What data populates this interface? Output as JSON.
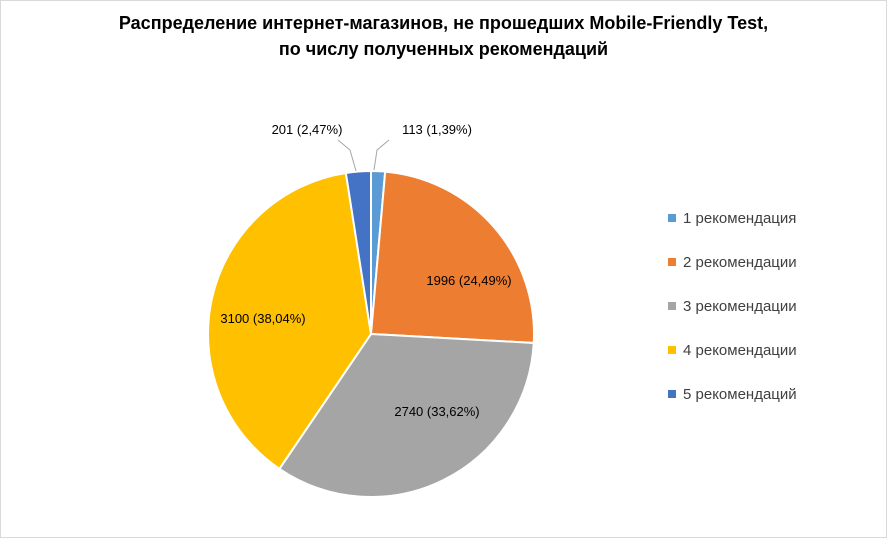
{
  "chart_data": {
    "type": "pie",
    "title_lines": [
      "Распределение интернет-магазинов, не прошедших Mobile-Friendly Test,",
      "по числу полученных рекомендаций"
    ],
    "slices": [
      {
        "name": "1 рекомендация",
        "value": 113,
        "percent": "1,39%",
        "color": "#5b9bd5",
        "label": "113 (1,39%)"
      },
      {
        "name": "2 рекомендации",
        "value": 1996,
        "percent": "24,49%",
        "color": "#ed7d31",
        "label": "1996 (24,49%)"
      },
      {
        "name": "3 рекомендации",
        "value": 2740,
        "percent": "33,62%",
        "color": "#a5a5a5",
        "label": "2740 (33,62%)"
      },
      {
        "name": "4 рекомендации",
        "value": 3100,
        "percent": "38,04%",
        "color": "#ffc000",
        "label": "3100 (38,04%)"
      },
      {
        "name": "5 рекомендаций",
        "value": 201,
        "percent": "2,47%",
        "color": "#4472c4",
        "label": "201 (2,47%)"
      }
    ],
    "legend_position": "right"
  }
}
